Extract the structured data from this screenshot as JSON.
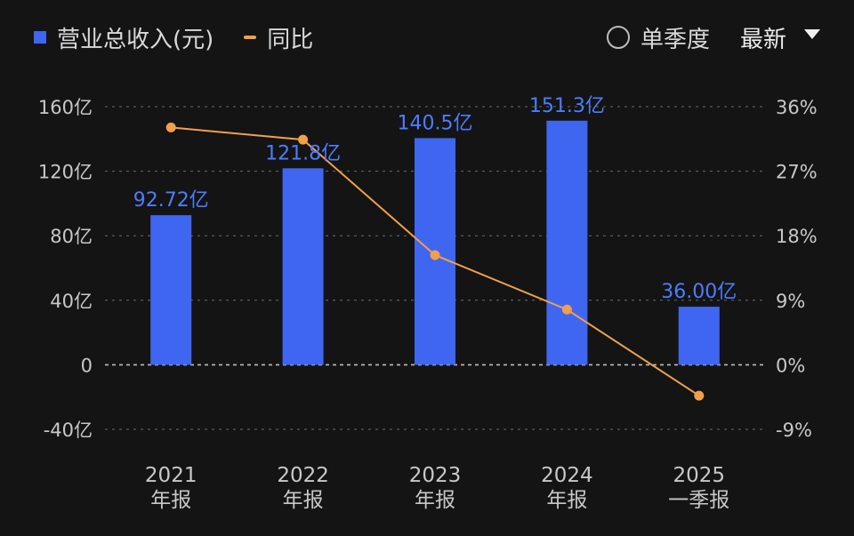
{
  "legend": {
    "revenue_label": "营业总收入(元)",
    "yoy_label": "同比"
  },
  "controls": {
    "quarter_toggle_label": "单季度",
    "period_select_label": "最新"
  },
  "colors": {
    "bar": "#3f66f0",
    "line": "#f0a04b",
    "data_label": "#4d7cff",
    "grid": "#6a6a6a"
  },
  "chart_data": {
    "type": "bar",
    "categories": [
      [
        "2021",
        "年报"
      ],
      [
        "2022",
        "年报"
      ],
      [
        "2023",
        "年报"
      ],
      [
        "2024",
        "年报"
      ],
      [
        "2025",
        "一季报"
      ]
    ],
    "series": [
      {
        "name": "营业总收入(元)",
        "type": "bar",
        "axis": "left",
        "values": [
          92.72,
          121.8,
          140.5,
          151.3,
          36.0
        ],
        "labels": [
          "92.72亿",
          "121.8亿",
          "140.5亿",
          "151.3亿",
          "36.00亿"
        ]
      },
      {
        "name": "同比",
        "type": "line",
        "axis": "right",
        "values": [
          33.1,
          31.4,
          15.3,
          7.7,
          -4.3
        ]
      }
    ],
    "left_axis": {
      "ylim": [
        -40,
        160
      ],
      "ticks": [
        -40,
        0,
        40,
        80,
        120,
        160
      ],
      "tick_labels": [
        "-40亿",
        "0",
        "40亿",
        "80亿",
        "120亿",
        "160亿"
      ]
    },
    "right_axis": {
      "ylim": [
        -9,
        36
      ],
      "ticks": [
        -9,
        0,
        9,
        18,
        27,
        36
      ],
      "tick_labels": [
        "-9%",
        "0%",
        "9%",
        "18%",
        "27%",
        "36%"
      ]
    },
    "grid": "dashed horizontal",
    "legend_position": "top-left"
  }
}
